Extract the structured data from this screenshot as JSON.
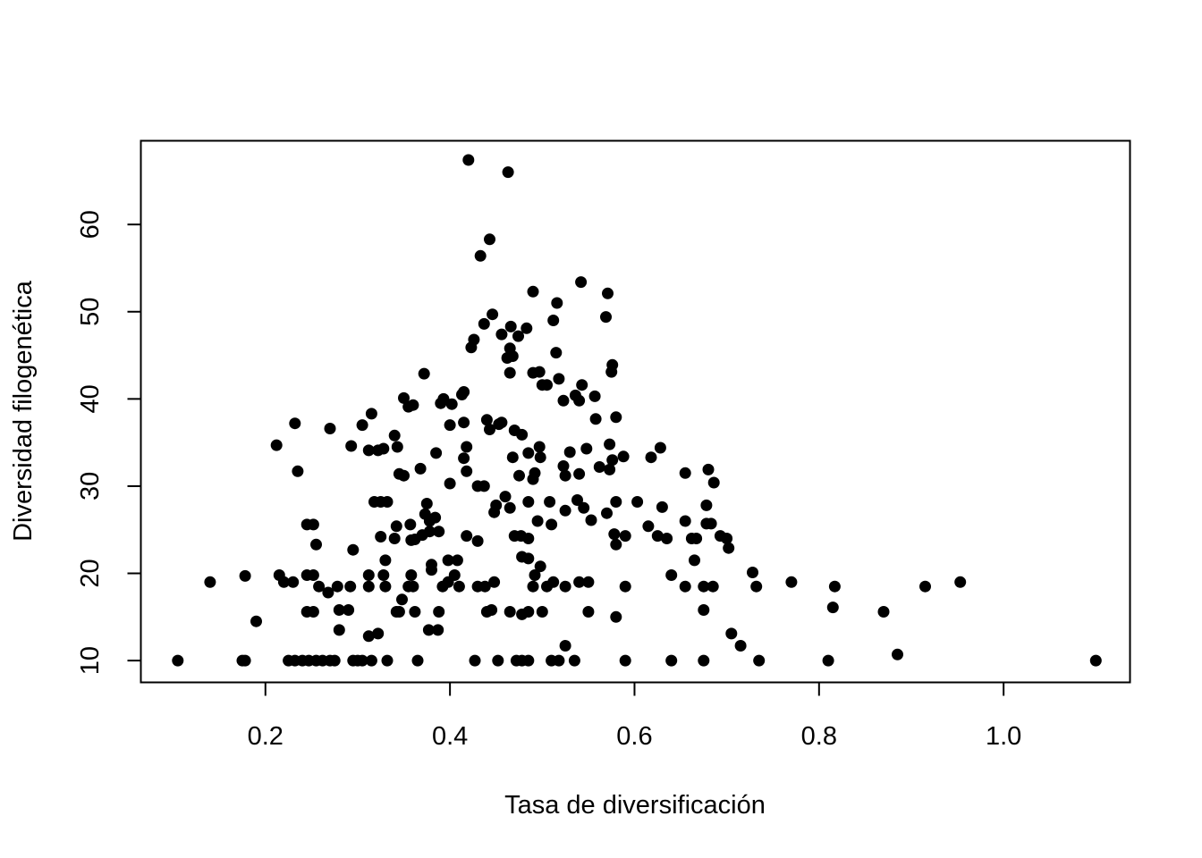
{
  "chart_data": {
    "type": "scatter",
    "title": "",
    "xlabel": "Tasa de diversificación",
    "ylabel": "Diversidad filogenética",
    "xlim": [
      0.065,
      1.137
    ],
    "ylim": [
      7.5,
      69.6
    ],
    "x_ticks": [
      0.2,
      0.4,
      0.6,
      0.8,
      1.0
    ],
    "x_tick_labels": [
      "0.2",
      "0.4",
      "0.6",
      "0.8",
      "1.0"
    ],
    "y_ticks": [
      10,
      20,
      30,
      40,
      50,
      60
    ],
    "y_tick_labels": [
      "10",
      "20",
      "30",
      "40",
      "50",
      "60"
    ],
    "grid": false,
    "legend": "none",
    "marker_color": "#000000",
    "points": [
      [
        0.105,
        10.0
      ],
      [
        0.175,
        10.0
      ],
      [
        0.178,
        10.0
      ],
      [
        0.225,
        10.0
      ],
      [
        0.232,
        10.0
      ],
      [
        0.24,
        10.0
      ],
      [
        0.247,
        10.0
      ],
      [
        0.255,
        10.0
      ],
      [
        0.262,
        10.0
      ],
      [
        0.27,
        10.0
      ],
      [
        0.275,
        10.0
      ],
      [
        0.295,
        10.0
      ],
      [
        0.3,
        10.0
      ],
      [
        0.305,
        10.0
      ],
      [
        0.315,
        10.0
      ],
      [
        0.332,
        10.0
      ],
      [
        0.365,
        10.0
      ],
      [
        0.427,
        10.0
      ],
      [
        0.452,
        10.0
      ],
      [
        0.472,
        10.0
      ],
      [
        0.478,
        10.0
      ],
      [
        0.485,
        10.0
      ],
      [
        0.51,
        10.0
      ],
      [
        0.518,
        10.0
      ],
      [
        0.535,
        10.0
      ],
      [
        0.59,
        10.0
      ],
      [
        0.64,
        10.0
      ],
      [
        0.675,
        10.0
      ],
      [
        0.735,
        10.0
      ],
      [
        0.81,
        10.0
      ],
      [
        1.1,
        10.0
      ],
      [
        0.885,
        10.7
      ],
      [
        0.525,
        11.7
      ],
      [
        0.715,
        11.7
      ],
      [
        0.312,
        12.8
      ],
      [
        0.322,
        13.1
      ],
      [
        0.705,
        13.1
      ],
      [
        0.28,
        13.5
      ],
      [
        0.377,
        13.5
      ],
      [
        0.387,
        13.5
      ],
      [
        0.19,
        14.5
      ],
      [
        0.58,
        15.0
      ],
      [
        0.478,
        15.3
      ],
      [
        0.245,
        15.6
      ],
      [
        0.252,
        15.6
      ],
      [
        0.28,
        15.8
      ],
      [
        0.29,
        15.8
      ],
      [
        0.342,
        15.6
      ],
      [
        0.345,
        15.6
      ],
      [
        0.362,
        15.6
      ],
      [
        0.388,
        15.6
      ],
      [
        0.44,
        15.6
      ],
      [
        0.445,
        15.8
      ],
      [
        0.465,
        15.6
      ],
      [
        0.485,
        15.6
      ],
      [
        0.5,
        15.6
      ],
      [
        0.55,
        15.6
      ],
      [
        0.675,
        15.8
      ],
      [
        0.815,
        16.1
      ],
      [
        0.87,
        15.6
      ],
      [
        0.348,
        17.0
      ],
      [
        0.268,
        17.8
      ],
      [
        0.278,
        18.5
      ],
      [
        0.258,
        18.5
      ],
      [
        0.14,
        19.0
      ],
      [
        0.22,
        19.0
      ],
      [
        0.23,
        19.0
      ],
      [
        0.292,
        18.5
      ],
      [
        0.312,
        18.5
      ],
      [
        0.33,
        18.5
      ],
      [
        0.355,
        18.5
      ],
      [
        0.36,
        18.5
      ],
      [
        0.392,
        18.5
      ],
      [
        0.398,
        19.0
      ],
      [
        0.41,
        18.5
      ],
      [
        0.43,
        18.5
      ],
      [
        0.438,
        18.5
      ],
      [
        0.448,
        19.0
      ],
      [
        0.49,
        18.5
      ],
      [
        0.505,
        18.5
      ],
      [
        0.512,
        19.0
      ],
      [
        0.525,
        18.5
      ],
      [
        0.54,
        19.0
      ],
      [
        0.55,
        19.0
      ],
      [
        0.59,
        18.5
      ],
      [
        0.655,
        18.5
      ],
      [
        0.675,
        18.5
      ],
      [
        0.685,
        18.5
      ],
      [
        0.732,
        18.5
      ],
      [
        0.77,
        19.0
      ],
      [
        0.817,
        18.5
      ],
      [
        0.915,
        18.5
      ],
      [
        0.953,
        19.0
      ],
      [
        0.178,
        19.7
      ],
      [
        0.215,
        19.8
      ],
      [
        0.245,
        19.8
      ],
      [
        0.252,
        19.8
      ],
      [
        0.312,
        19.8
      ],
      [
        0.328,
        19.8
      ],
      [
        0.358,
        19.8
      ],
      [
        0.405,
        19.8
      ],
      [
        0.492,
        19.8
      ],
      [
        0.64,
        19.8
      ],
      [
        0.728,
        20.1
      ],
      [
        0.38,
        20.4
      ],
      [
        0.498,
        20.8
      ],
      [
        0.33,
        21.5
      ],
      [
        0.38,
        21.0
      ],
      [
        0.398,
        21.5
      ],
      [
        0.408,
        21.5
      ],
      [
        0.478,
        21.9
      ],
      [
        0.485,
        21.7
      ],
      [
        0.665,
        21.5
      ],
      [
        0.295,
        22.7
      ],
      [
        0.255,
        23.3
      ],
      [
        0.43,
        23.7
      ],
      [
        0.358,
        23.8
      ],
      [
        0.362,
        23.9
      ],
      [
        0.702,
        22.9
      ],
      [
        0.58,
        23.3
      ],
      [
        0.325,
        24.2
      ],
      [
        0.34,
        24.0
      ],
      [
        0.37,
        24.4
      ],
      [
        0.378,
        24.8
      ],
      [
        0.388,
        24.8
      ],
      [
        0.418,
        24.3
      ],
      [
        0.47,
        24.3
      ],
      [
        0.477,
        24.3
      ],
      [
        0.485,
        24.0
      ],
      [
        0.578,
        24.5
      ],
      [
        0.59,
        24.3
      ],
      [
        0.625,
        24.3
      ],
      [
        0.635,
        24.0
      ],
      [
        0.662,
        24.0
      ],
      [
        0.667,
        24.0
      ],
      [
        0.693,
        24.3
      ],
      [
        0.7,
        24.0
      ],
      [
        0.245,
        25.6
      ],
      [
        0.252,
        25.6
      ],
      [
        0.342,
        25.4
      ],
      [
        0.357,
        25.6
      ],
      [
        0.378,
        26.0
      ],
      [
        0.384,
        26.4
      ],
      [
        0.448,
        27.0
      ],
      [
        0.495,
        26.0
      ],
      [
        0.51,
        25.6
      ],
      [
        0.553,
        26.1
      ],
      [
        0.615,
        25.4
      ],
      [
        0.655,
        26.0
      ],
      [
        0.678,
        25.7
      ],
      [
        0.683,
        25.7
      ],
      [
        0.373,
        26.8
      ],
      [
        0.45,
        27.8
      ],
      [
        0.465,
        27.5
      ],
      [
        0.525,
        27.2
      ],
      [
        0.545,
        27.5
      ],
      [
        0.57,
        26.9
      ],
      [
        0.318,
        28.2
      ],
      [
        0.325,
        28.2
      ],
      [
        0.332,
        28.2
      ],
      [
        0.375,
        28.0
      ],
      [
        0.46,
        28.8
      ],
      [
        0.485,
        28.2
      ],
      [
        0.508,
        28.2
      ],
      [
        0.538,
        28.4
      ],
      [
        0.58,
        28.2
      ],
      [
        0.603,
        28.2
      ],
      [
        0.63,
        27.6
      ],
      [
        0.678,
        27.8
      ],
      [
        0.4,
        30.3
      ],
      [
        0.43,
        30.0
      ],
      [
        0.437,
        30.0
      ],
      [
        0.49,
        30.8
      ],
      [
        0.235,
        31.7
      ],
      [
        0.345,
        31.4
      ],
      [
        0.35,
        31.2
      ],
      [
        0.368,
        32.0
      ],
      [
        0.418,
        31.7
      ],
      [
        0.475,
        31.2
      ],
      [
        0.492,
        31.5
      ],
      [
        0.523,
        32.3
      ],
      [
        0.525,
        31.2
      ],
      [
        0.54,
        31.4
      ],
      [
        0.562,
        32.2
      ],
      [
        0.573,
        31.9
      ],
      [
        0.655,
        31.5
      ],
      [
        0.68,
        31.9
      ],
      [
        0.686,
        30.4
      ],
      [
        0.328,
        34.3
      ],
      [
        0.312,
        34.1
      ],
      [
        0.322,
        34.1
      ],
      [
        0.212,
        34.7
      ],
      [
        0.293,
        34.6
      ],
      [
        0.343,
        34.5
      ],
      [
        0.385,
        33.8
      ],
      [
        0.415,
        33.2
      ],
      [
        0.418,
        34.5
      ],
      [
        0.468,
        33.3
      ],
      [
        0.485,
        33.8
      ],
      [
        0.498,
        33.3
      ],
      [
        0.497,
        34.5
      ],
      [
        0.53,
        33.9
      ],
      [
        0.548,
        34.3
      ],
      [
        0.576,
        33.0
      ],
      [
        0.588,
        33.4
      ],
      [
        0.628,
        34.4
      ],
      [
        0.618,
        33.3
      ],
      [
        0.573,
        34.8
      ],
      [
        0.232,
        37.2
      ],
      [
        0.27,
        36.6
      ],
      [
        0.305,
        37.0
      ],
      [
        0.315,
        38.3
      ],
      [
        0.34,
        35.8
      ],
      [
        0.36,
        39.3
      ],
      [
        0.372,
        42.9
      ],
      [
        0.39,
        39.5
      ],
      [
        0.393,
        40.0
      ],
      [
        0.355,
        39.1
      ],
      [
        0.35,
        40.1
      ],
      [
        0.4,
        37.0
      ],
      [
        0.402,
        39.4
      ],
      [
        0.413,
        40.5
      ],
      [
        0.415,
        40.8
      ],
      [
        0.415,
        37.3
      ],
      [
        0.44,
        37.6
      ],
      [
        0.443,
        36.5
      ],
      [
        0.453,
        37.1
      ],
      [
        0.456,
        37.3
      ],
      [
        0.47,
        36.4
      ],
      [
        0.478,
        35.9
      ],
      [
        0.497,
        43.1
      ],
      [
        0.5,
        41.6
      ],
      [
        0.505,
        41.6
      ],
      [
        0.523,
        39.8
      ],
      [
        0.536,
        40.4
      ],
      [
        0.54,
        39.8
      ],
      [
        0.543,
        41.6
      ],
      [
        0.557,
        40.3
      ],
      [
        0.558,
        37.7
      ],
      [
        0.575,
        43.1
      ],
      [
        0.576,
        43.9
      ],
      [
        0.58,
        37.9
      ],
      [
        0.49,
        43.0
      ],
      [
        0.465,
        43.0
      ],
      [
        0.462,
        44.7
      ],
      [
        0.465,
        45.8
      ],
      [
        0.468,
        44.9
      ],
      [
        0.423,
        45.9
      ],
      [
        0.426,
        46.8
      ],
      [
        0.456,
        47.4
      ],
      [
        0.466,
        48.3
      ],
      [
        0.474,
        47.2
      ],
      [
        0.483,
        48.1
      ],
      [
        0.437,
        48.6
      ],
      [
        0.446,
        49.7
      ],
      [
        0.512,
        49.0
      ],
      [
        0.515,
        45.3
      ],
      [
        0.518,
        42.3
      ],
      [
        0.569,
        49.4
      ],
      [
        0.516,
        51.0
      ],
      [
        0.49,
        52.3
      ],
      [
        0.571,
        52.1
      ],
      [
        0.542,
        53.4
      ],
      [
        0.433,
        56.4
      ],
      [
        0.443,
        58.3
      ],
      [
        0.463,
        66.0
      ],
      [
        0.42,
        67.4
      ]
    ]
  }
}
